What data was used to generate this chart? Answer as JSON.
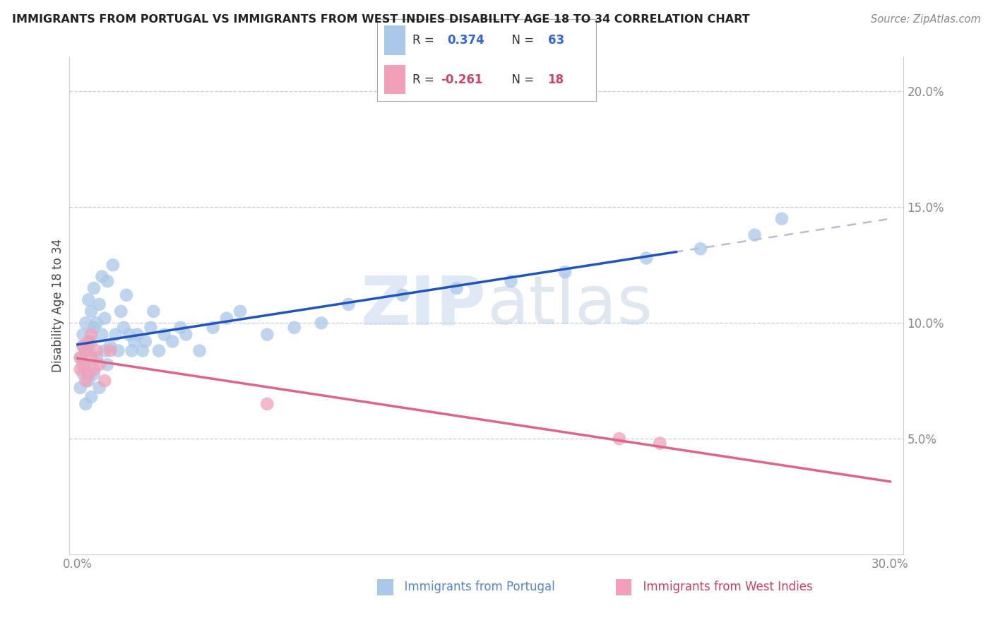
{
  "title": "IMMIGRANTS FROM PORTUGAL VS IMMIGRANTS FROM WEST INDIES DISABILITY AGE 18 TO 34 CORRELATION CHART",
  "source": "Source: ZipAtlas.com",
  "ylabel": "Disability Age 18 to 34",
  "portugal_color": "#aac8e8",
  "west_indies_color": "#f0a0b8",
  "portugal_line_color": "#2255bb",
  "west_indies_line_color": "#dd6688",
  "dashed_line_color": "#bbbbcc",
  "watermark_text": "ZIP",
  "watermark_text2": "atlas",
  "portugal_R": 0.374,
  "portugal_N": 63,
  "west_indies_R": -0.261,
  "west_indies_N": 18,
  "xticks": [
    0.0,
    0.05,
    0.1,
    0.15,
    0.2,
    0.25,
    0.3
  ],
  "xtick_labels": [
    "0.0%",
    "",
    "",
    "",
    "",
    "",
    "30.0%"
  ],
  "yticks_right": [
    0.05,
    0.1,
    0.15,
    0.2
  ],
  "ytick_labels_right": [
    "5.0%",
    "10.0%",
    "15.0%",
    "20.0%"
  ],
  "legend_R1": "R =  0.374",
  "legend_N1": "N = 63",
  "legend_R2": "R = -0.261",
  "legend_N2": "N = 18"
}
